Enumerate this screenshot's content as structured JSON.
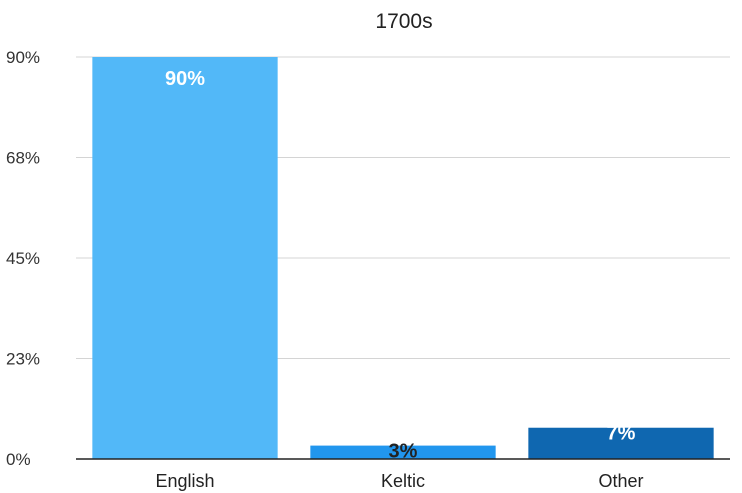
{
  "chart_data": {
    "type": "bar",
    "title": "1700s",
    "xlabel": "",
    "ylabel": "",
    "categories": [
      "English",
      "Keltic",
      "Other"
    ],
    "values": [
      90,
      3,
      7
    ],
    "value_labels": [
      "90%",
      "3%",
      "7%"
    ],
    "ylim": [
      0,
      90
    ],
    "yticks": [
      0,
      22.5,
      45,
      67.5,
      90
    ],
    "ytick_labels": [
      "0%",
      "23%",
      "45%",
      "68%",
      "90%"
    ],
    "grid": true,
    "legend": "none",
    "colors": [
      "#52b8f8",
      "#2196ee",
      "#0f67b0"
    ],
    "label_colors": [
      "#ffffff",
      "#222222",
      "#ffffff"
    ]
  }
}
